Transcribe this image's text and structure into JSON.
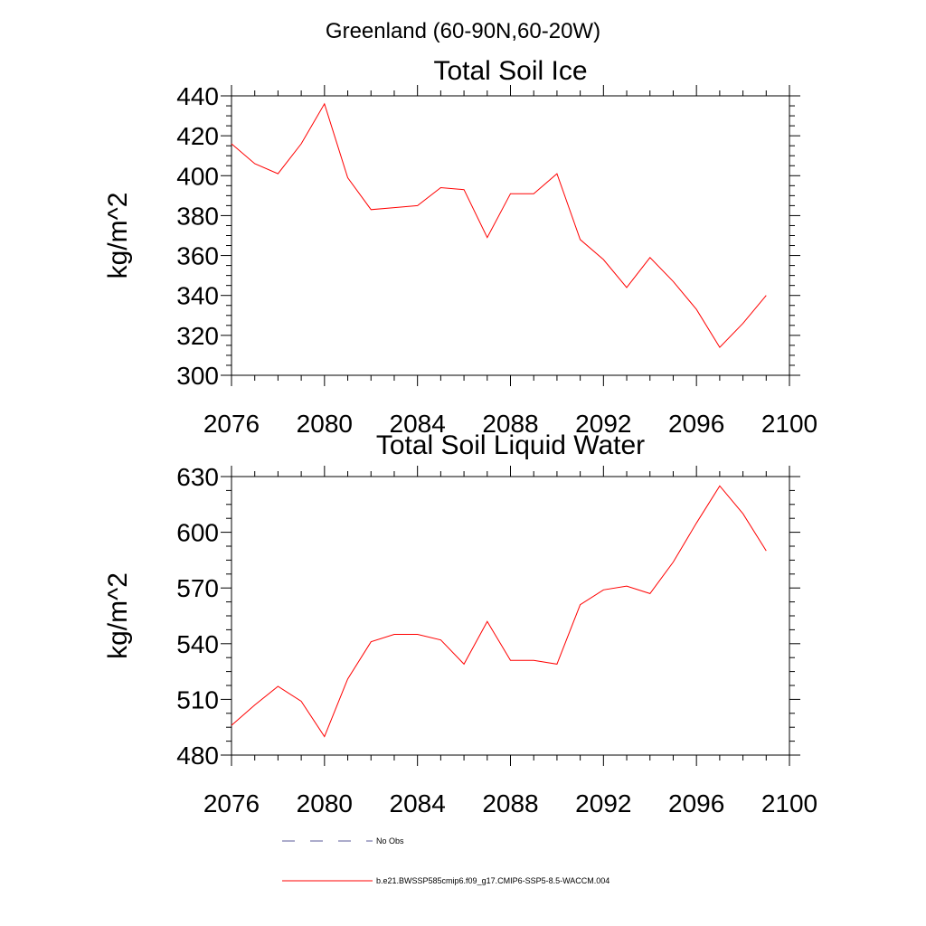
{
  "figure": {
    "title": "Greenland (60-90N,60-20W)"
  },
  "chart_data": [
    {
      "type": "line",
      "title": "Total Soil Ice",
      "xlabel": "",
      "ylabel": "kg/m^2",
      "xlim": [
        2076,
        2100
      ],
      "ylim": [
        300,
        440
      ],
      "xticks": [
        2076,
        2080,
        2084,
        2088,
        2092,
        2096,
        2100
      ],
      "yticks": [
        300,
        320,
        340,
        360,
        380,
        400,
        420,
        440
      ],
      "grid": false,
      "series": [
        {
          "name": "b.e21.BWSSP585cmip6.f09_g17.CMIP6-SSP5-8.5-WACCM.004",
          "color": "#ff0000",
          "x": [
            2076,
            2077,
            2078,
            2079,
            2080,
            2081,
            2082,
            2083,
            2084,
            2085,
            2086,
            2087,
            2088,
            2089,
            2090,
            2091,
            2092,
            2093,
            2094,
            2095,
            2096,
            2097,
            2098,
            2099
          ],
          "values": [
            416,
            406,
            401,
            416,
            436,
            399,
            383,
            384,
            385,
            394,
            393,
            369,
            391,
            391,
            401,
            368,
            358,
            344,
            359,
            347,
            333,
            314,
            326,
            340
          ]
        }
      ]
    },
    {
      "type": "line",
      "title": "Total Soil Liquid Water",
      "xlabel": "",
      "ylabel": "kg/m^2",
      "xlim": [
        2076,
        2100
      ],
      "ylim": [
        480,
        630
      ],
      "xticks": [
        2076,
        2080,
        2084,
        2088,
        2092,
        2096,
        2100
      ],
      "yticks": [
        480,
        510,
        540,
        570,
        600,
        630
      ],
      "grid": false,
      "series": [
        {
          "name": "b.e21.BWSSP585cmip6.f09_g17.CMIP6-SSP5-8.5-WACCM.004",
          "color": "#ff0000",
          "x": [
            2076,
            2077,
            2078,
            2079,
            2080,
            2081,
            2082,
            2083,
            2084,
            2085,
            2086,
            2087,
            2088,
            2089,
            2090,
            2091,
            2092,
            2093,
            2094,
            2095,
            2096,
            2097,
            2098,
            2099
          ],
          "values": [
            496,
            507,
            517,
            509,
            490,
            521,
            541,
            545,
            545,
            542,
            529,
            552,
            531,
            531,
            529,
            561,
            569,
            571,
            567,
            584,
            605,
            625,
            610,
            590
          ]
        }
      ]
    }
  ],
  "legend": {
    "placement": "bottom",
    "entries": [
      {
        "label": "No Obs",
        "color": "#5a5a9a",
        "style": "dashed"
      },
      {
        "label": "b.e21.BWSSP585cmip6.f09_g17.CMIP6-SSP5-8.5-WACCM.004",
        "color": "#ff0000",
        "style": "solid"
      }
    ]
  }
}
